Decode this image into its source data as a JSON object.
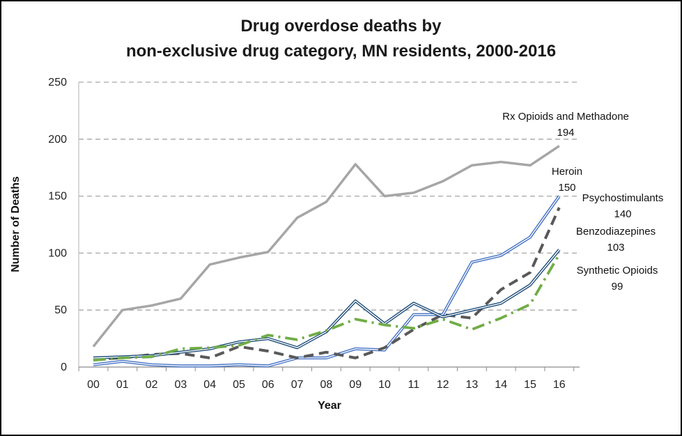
{
  "chart_data": {
    "type": "line",
    "title_line1": "Drug overdose deaths by",
    "title_line2": "non-exclusive drug category, MN residents, 2000-2016",
    "xlabel": "Year",
    "ylabel": "Number of Deaths",
    "categories": [
      "00",
      "01",
      "02",
      "03",
      "04",
      "05",
      "06",
      "07",
      "08",
      "09",
      "10",
      "11",
      "12",
      "13",
      "14",
      "15",
      "16"
    ],
    "ylim": [
      0,
      250
    ],
    "yticks": [
      0,
      50,
      100,
      150,
      200,
      250
    ],
    "grid": "horizontal dashed",
    "series": [
      {
        "name": "Rx Opioids and Methadone",
        "end_label": "194",
        "color": "#a6a6a6",
        "style": "solid",
        "values": [
          18,
          50,
          54,
          60,
          90,
          96,
          101,
          131,
          145,
          178,
          150,
          153,
          163,
          177,
          180,
          177,
          194
        ]
      },
      {
        "name": "Heroin",
        "end_label": "150",
        "color": "#4472c4",
        "style": "double",
        "values": [
          2,
          5,
          2,
          1,
          1,
          2,
          1,
          8,
          8,
          16,
          15,
          46,
          46,
          92,
          98,
          114,
          150
        ]
      },
      {
        "name": "Psychostimulants",
        "end_label": "140",
        "color": "#595959",
        "style": "dashed",
        "values": [
          7,
          8,
          11,
          12,
          8,
          18,
          14,
          8,
          13,
          8,
          17,
          33,
          46,
          43,
          68,
          83,
          140
        ]
      },
      {
        "name": "Benzodiazepines",
        "end_label": "103",
        "color": "#1f4e79",
        "style": "double",
        "values": [
          8,
          9,
          10,
          13,
          16,
          22,
          25,
          17,
          31,
          58,
          38,
          56,
          44,
          50,
          56,
          72,
          103
        ]
      },
      {
        "name": "Synthetic Opioids",
        "end_label": "99",
        "color": "#70ad47",
        "style": "dashdot",
        "values": [
          6,
          8,
          9,
          16,
          17,
          19,
          28,
          24,
          32,
          42,
          37,
          34,
          42,
          33,
          43,
          55,
          99
        ]
      }
    ]
  }
}
